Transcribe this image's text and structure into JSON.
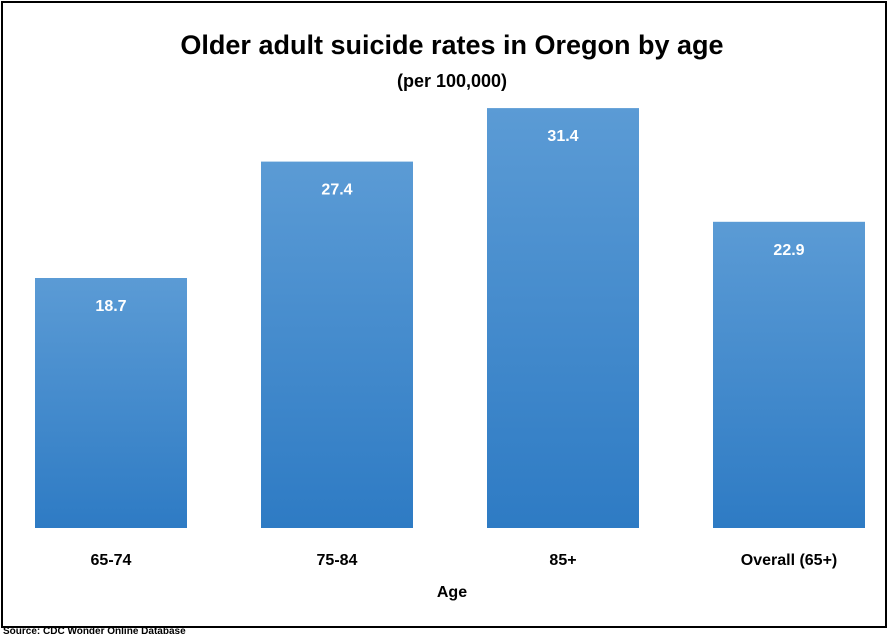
{
  "chart_data": {
    "type": "bar",
    "title": "Older adult suicide rates in Oregon by age",
    "subtitle": "(per 100,000)",
    "categories": [
      "65-74",
      "75-84",
      "85+",
      "Overall (65+)"
    ],
    "values": [
      18.7,
      27.4,
      31.4,
      22.9
    ],
    "data_labels": [
      "18.7",
      "27.4",
      "31.4",
      "22.9"
    ],
    "xlabel": "Age",
    "ylabel": "",
    "ylim": [
      0,
      35
    ],
    "grid": false,
    "legend": "none",
    "bar_color_top": "#5b9bd5",
    "bar_color_bottom": "#2e7bc4"
  },
  "source": "Source: CDC Wonder Online Database"
}
